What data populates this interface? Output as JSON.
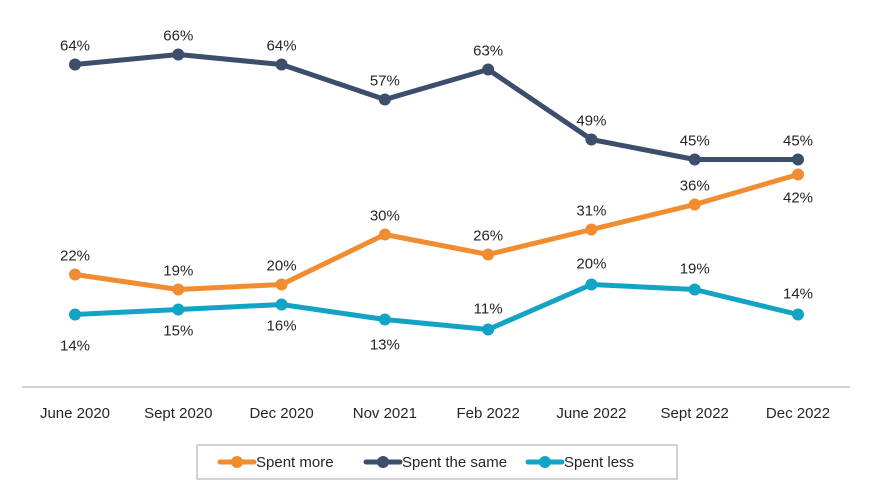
{
  "chart_data": {
    "type": "line",
    "categories": [
      "June 2020",
      "Sept 2020",
      "Dec 2020",
      "Nov 2021",
      "Feb 2022",
      "June 2022",
      "Sept 2022",
      "Dec 2022"
    ],
    "series": [
      {
        "name": "Spent more",
        "values": [
          22,
          19,
          20,
          30,
          26,
          31,
          36,
          42
        ],
        "labels": [
          "22%",
          "19%",
          "20%",
          "30%",
          "26%",
          "31%",
          "36%",
          "42%"
        ],
        "color": "#F28C30"
      },
      {
        "name": "Spent the same",
        "values": [
          64,
          66,
          64,
          57,
          63,
          49,
          45,
          45
        ],
        "labels": [
          "64%",
          "66%",
          "64%",
          "57%",
          "63%",
          "49%",
          "45%",
          "45%"
        ],
        "color": "#3C4E6B"
      },
      {
        "name": "Spent less",
        "values": [
          14,
          15,
          16,
          13,
          11,
          20,
          19,
          14
        ],
        "labels": [
          "14%",
          "15%",
          "16%",
          "13%",
          "11%",
          "20%",
          "19%",
          "14%"
        ],
        "color": "#13A3C4"
      }
    ],
    "ylim": [
      0,
      70
    ],
    "grid": false,
    "legend_position": "bottom"
  }
}
